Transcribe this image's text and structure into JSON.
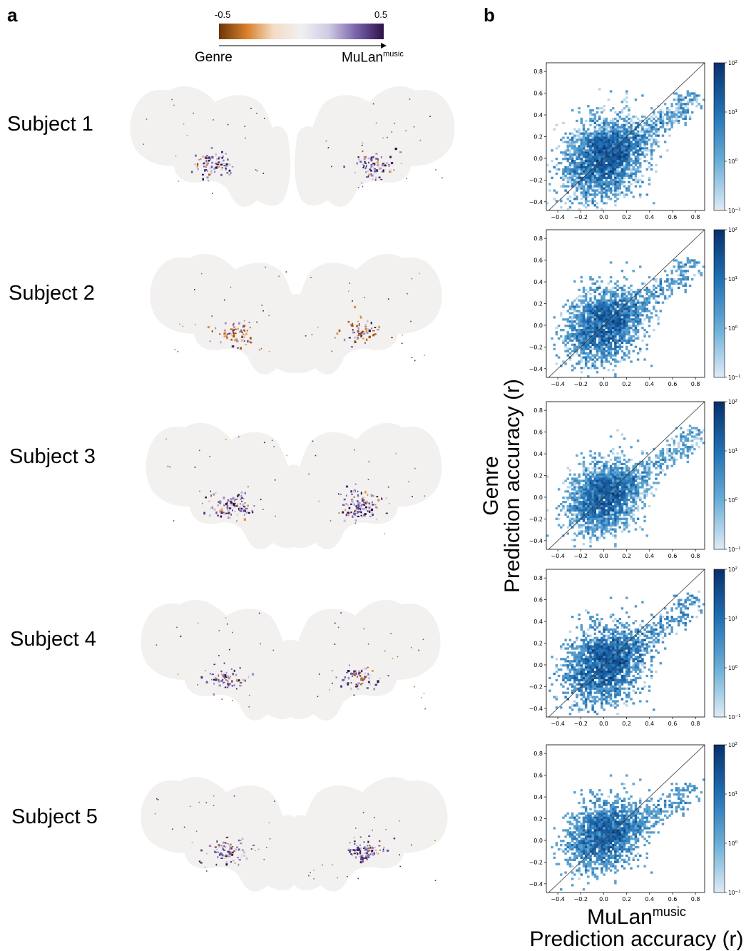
{
  "panel_a_label": "a",
  "panel_b_label": "b",
  "colorbar": {
    "min_label": "-0.5",
    "max_label": "0.5",
    "left_label": "Genre",
    "right_label_main": "MuLan",
    "right_label_sup": "music",
    "colors": [
      "#6b3508",
      "#d9802a",
      "#f3dcc5",
      "#f0f0f2",
      "#cfc9e2",
      "#7b63ad",
      "#2d1247"
    ]
  },
  "subjects": [
    {
      "label": "Subject 1"
    },
    {
      "label": "Subject 2"
    },
    {
      "label": "Subject 3"
    },
    {
      "label": "Subject 4"
    },
    {
      "label": "Subject 5"
    }
  ],
  "shared_ylabel": {
    "line1": "Genre",
    "line2": "Prediction accuracy (r)"
  },
  "shared_xlabel": {
    "main": "MuLan",
    "sup": "music",
    "line2": "Prediction accuracy (r)"
  },
  "chart_data": [
    {
      "type": "heatmap",
      "subject": "Subject 1",
      "xlim": [
        -0.5,
        0.88
      ],
      "ylim": [
        -0.48,
        0.88
      ],
      "xticks": [
        "-0.4",
        "-0.2",
        "0.0",
        "0.2",
        "0.4",
        "0.6",
        "0.8"
      ],
      "yticks": [
        "-0.4",
        "-0.2",
        "0.0",
        "0.2",
        "0.4",
        "0.6",
        "0.8"
      ],
      "colorbar_ticks": [
        "10^-1",
        "10^0",
        "10^1",
        "10^2"
      ],
      "colorbar_scale": "log",
      "identity_line": true,
      "cloud": {
        "center": [
          0.0,
          0.0
        ],
        "spread_x": 0.17,
        "spread_y": 0.17,
        "tail_to": [
          0.82,
          0.55
        ]
      }
    },
    {
      "type": "heatmap",
      "subject": "Subject 2",
      "xlim": [
        -0.5,
        0.88
      ],
      "ylim": [
        -0.48,
        0.88
      ],
      "xticks": [
        "-0.4",
        "-0.2",
        "0.0",
        "0.2",
        "0.4",
        "0.6",
        "0.8"
      ],
      "yticks": [
        "-0.4",
        "-0.2",
        "0.0",
        "0.2",
        "0.4",
        "0.6",
        "0.8"
      ],
      "colorbar_ticks": [
        "10^-1",
        "10^0",
        "10^1",
        "10^2"
      ],
      "colorbar_scale": "log",
      "identity_line": true,
      "cloud": {
        "center": [
          0.0,
          0.0
        ],
        "spread_x": 0.16,
        "spread_y": 0.16,
        "tail_to": [
          0.82,
          0.55
        ]
      }
    },
    {
      "type": "heatmap",
      "subject": "Subject 3",
      "xlim": [
        -0.5,
        0.88
      ],
      "ylim": [
        -0.48,
        0.88
      ],
      "xticks": [
        "-0.4",
        "-0.2",
        "0.0",
        "0.2",
        "0.4",
        "0.6",
        "0.8"
      ],
      "yticks": [
        "-0.4",
        "-0.2",
        "0.0",
        "0.2",
        "0.4",
        "0.6",
        "0.8"
      ],
      "colorbar_ticks": [
        "10^-1",
        "10^0",
        "10^1",
        "10^2"
      ],
      "colorbar_scale": "log",
      "identity_line": true,
      "cloud": {
        "center": [
          0.0,
          0.0
        ],
        "spread_x": 0.15,
        "spread_y": 0.15,
        "tail_to": [
          0.85,
          0.58
        ]
      }
    },
    {
      "type": "heatmap",
      "subject": "Subject 4",
      "xlim": [
        -0.5,
        0.88
      ],
      "ylim": [
        -0.48,
        0.88
      ],
      "xticks": [
        "-0.4",
        "-0.2",
        "0.0",
        "0.2",
        "0.4",
        "0.6",
        "0.8"
      ],
      "yticks": [
        "-0.4",
        "-0.2",
        "0.0",
        "0.2",
        "0.4",
        "0.6",
        "0.8"
      ],
      "colorbar_ticks": [
        "10^-1",
        "10^0",
        "10^1",
        "10^2"
      ],
      "colorbar_scale": "log",
      "identity_line": true,
      "cloud": {
        "center": [
          0.0,
          0.0
        ],
        "spread_x": 0.17,
        "spread_y": 0.17,
        "tail_to": [
          0.82,
          0.58
        ]
      }
    },
    {
      "type": "heatmap",
      "subject": "Subject 5",
      "xlim": [
        -0.5,
        0.88
      ],
      "ylim": [
        -0.48,
        0.88
      ],
      "xticks": [
        "-0.4",
        "-0.2",
        "0.0",
        "0.2",
        "0.4",
        "0.6",
        "0.8"
      ],
      "yticks": [
        "-0.4",
        "-0.2",
        "0.0",
        "0.2",
        "0.4",
        "0.6",
        "0.8"
      ],
      "colorbar_ticks": [
        "10^-1",
        "10^0",
        "10^1",
        "10^2"
      ],
      "colorbar_scale": "log",
      "identity_line": true,
      "cloud": {
        "center": [
          0.0,
          0.05
        ],
        "spread_x": 0.16,
        "spread_y": 0.15,
        "tail_to": [
          0.8,
          0.45
        ]
      }
    }
  ]
}
